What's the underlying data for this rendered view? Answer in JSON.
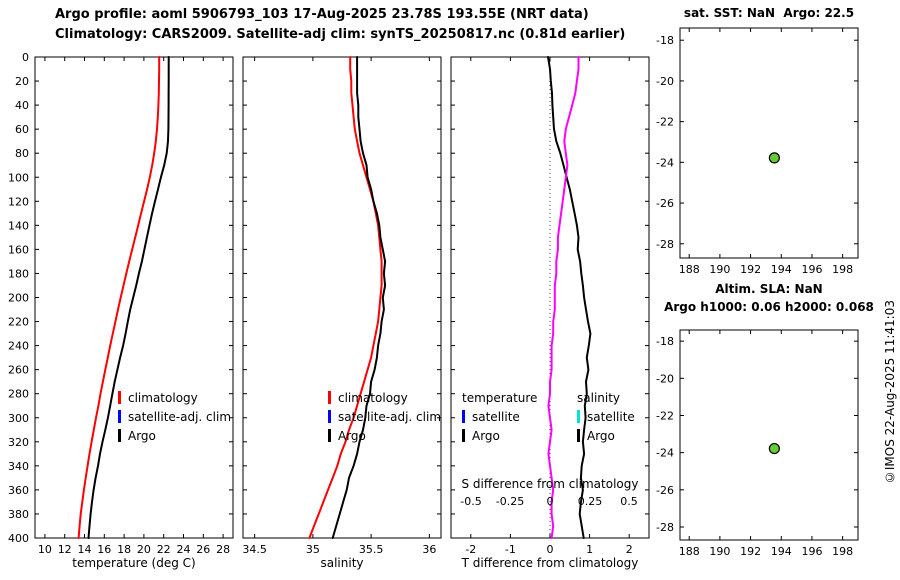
{
  "header": {
    "title_line1": "Argo profile: aoml 5906793_103 17-Aug-2025 23.78S 193.55E (NRT data)",
    "title_line2": "Climatology: CARS2009. Satellite-adj clim: synTS_20250817.nc (0.81d earlier)"
  },
  "copyright": "©IMOS 22-Aug-2025 11:41:03",
  "colors": {
    "climatology": "#ff0000",
    "satellite_adj_clim": "#0000ff",
    "argo": "#000000",
    "salinity_diff": "#ff00ff",
    "satellite_salinity": "#00e0e0",
    "position_marker_fill": "#66cc33"
  },
  "depths": [
    0,
    10,
    20,
    30,
    40,
    50,
    60,
    70,
    80,
    90,
    100,
    110,
    120,
    130,
    140,
    150,
    160,
    170,
    180,
    190,
    200,
    210,
    220,
    230,
    240,
    250,
    260,
    270,
    280,
    290,
    300,
    310,
    320,
    330,
    340,
    350,
    360,
    370,
    380,
    390,
    400
  ],
  "chart_data": [
    {
      "id": "temp",
      "type": "line",
      "xlabel": "temperature (deg C)",
      "xlim": [
        9,
        29
      ],
      "xticks": {
        "values": [
          10,
          12,
          14,
          16,
          18,
          20,
          22,
          24,
          26,
          28
        ],
        "labels": [
          "10",
          "12",
          "14",
          "16",
          "18",
          "20",
          "22",
          "24",
          "26",
          "28"
        ]
      },
      "ylim": [
        0,
        400
      ],
      "yticks": {
        "values": [
          0,
          20,
          40,
          60,
          80,
          100,
          120,
          140,
          160,
          180,
          200,
          220,
          240,
          260,
          280,
          300,
          320,
          340,
          360,
          380,
          400
        ],
        "labels": [
          "0",
          "20",
          "40",
          "60",
          "80",
          "100",
          "120",
          "140",
          "160",
          "180",
          "200",
          "220",
          "240",
          "260",
          "280",
          "300",
          "320",
          "340",
          "360",
          "380",
          "400"
        ],
        "show_labels": true
      },
      "series": [
        {
          "name": "climatology",
          "color": "#ff0000",
          "width": 2,
          "values": [
            21.55,
            21.55,
            21.53,
            21.5,
            21.46,
            21.4,
            21.32,
            21.2,
            21.04,
            20.84,
            20.6,
            20.32,
            20.02,
            19.72,
            19.42,
            19.12,
            18.82,
            18.52,
            18.22,
            17.94,
            17.66,
            17.38,
            17.12,
            16.86,
            16.6,
            16.35,
            16.1,
            15.86,
            15.62,
            15.4,
            15.16,
            14.94,
            14.72,
            14.51,
            14.31,
            14.12,
            13.94,
            13.78,
            13.62,
            13.5,
            13.4
          ]
        },
        {
          "name": "Argo",
          "color": "#000000",
          "width": 2,
          "values": [
            22.5,
            22.5,
            22.5,
            22.49,
            22.49,
            22.48,
            22.47,
            22.43,
            22.3,
            22.05,
            21.72,
            21.42,
            21.12,
            20.83,
            20.57,
            20.3,
            20.05,
            19.8,
            19.5,
            19.22,
            18.92,
            18.62,
            18.37,
            18.15,
            17.9,
            17.6,
            17.32,
            17.05,
            16.82,
            16.6,
            16.36,
            16.1,
            15.82,
            15.57,
            15.36,
            15.12,
            14.92,
            14.76,
            14.62,
            14.5,
            14.4
          ]
        }
      ],
      "legend": [
        {
          "label": "climatology",
          "color": "#ff0000"
        },
        {
          "label": "satellite-adj. clim",
          "color": "#0000ff"
        },
        {
          "label": "Argo",
          "color": "#000000"
        }
      ]
    },
    {
      "id": "sal",
      "type": "line",
      "xlabel": "salinity",
      "xlim": [
        34.4,
        36.1
      ],
      "xticks": {
        "values": [
          34.5,
          35,
          35.5,
          36
        ],
        "labels": [
          "34.5",
          "35",
          "35.5",
          "36"
        ]
      },
      "ylim": [
        0,
        400
      ],
      "yticks": {
        "values": [
          0,
          20,
          40,
          60,
          80,
          100,
          120,
          140,
          160,
          180,
          200,
          220,
          240,
          260,
          280,
          300,
          320,
          340,
          360,
          380,
          400
        ],
        "labels": [
          "0",
          "20",
          "40",
          "60",
          "80",
          "100",
          "120",
          "140",
          "160",
          "180",
          "200",
          "220",
          "240",
          "260",
          "280",
          "300",
          "320",
          "340",
          "360",
          "380",
          "400"
        ],
        "show_labels": false
      },
      "series": [
        {
          "name": "climatology",
          "color": "#ff0000",
          "width": 2,
          "values": [
            35.32,
            35.32,
            35.33,
            35.33,
            35.34,
            35.35,
            35.36,
            35.38,
            35.4,
            35.43,
            35.46,
            35.49,
            35.52,
            35.54,
            35.56,
            35.57,
            35.58,
            35.59,
            35.59,
            35.59,
            35.58,
            35.57,
            35.56,
            35.54,
            35.52,
            35.5,
            35.47,
            35.44,
            35.41,
            35.38,
            35.35,
            35.31,
            35.28,
            35.24,
            35.21,
            35.17,
            35.13,
            35.09,
            35.05,
            35.01,
            34.97
          ]
        },
        {
          "name": "Argo",
          "color": "#000000",
          "width": 2,
          "values": [
            35.38,
            35.38,
            35.38,
            35.38,
            35.39,
            35.39,
            35.4,
            35.41,
            35.43,
            35.46,
            35.47,
            35.5,
            35.52,
            35.55,
            35.57,
            35.58,
            35.6,
            35.62,
            35.61,
            35.62,
            35.6,
            35.61,
            35.59,
            35.58,
            35.56,
            35.55,
            35.53,
            35.5,
            35.49,
            35.46,
            35.45,
            35.43,
            35.4,
            35.38,
            35.35,
            35.31,
            35.29,
            35.26,
            35.23,
            35.2,
            35.17
          ]
        }
      ],
      "legend": [
        {
          "label": "climatology",
          "color": "#ff0000"
        },
        {
          "label": "satellite-adj. clim",
          "color": "#0000ff"
        },
        {
          "label": "Argo",
          "color": "#000000"
        }
      ]
    },
    {
      "id": "diff",
      "type": "line",
      "xlabel": "T difference from climatology",
      "xlim": [
        -2.5,
        2.5
      ],
      "xticks": {
        "values": [
          -2,
          -1,
          0,
          1,
          2
        ],
        "labels": [
          "-2",
          "-1",
          "0",
          "1",
          "2"
        ]
      },
      "ylim": [
        0,
        400
      ],
      "yticks": {
        "values": [
          0,
          20,
          40,
          60,
          80,
          100,
          120,
          140,
          160,
          180,
          200,
          220,
          240,
          260,
          280,
          300,
          320,
          340,
          360,
          380,
          400
        ],
        "labels": [
          "0",
          "20",
          "40",
          "60",
          "80",
          "100",
          "120",
          "140",
          "160",
          "180",
          "200",
          "220",
          "240",
          "260",
          "280",
          "300",
          "320",
          "340",
          "360",
          "380",
          "400"
        ],
        "show_labels": false
      },
      "vline": {
        "x": 0,
        "style": "dotted"
      },
      "inner_axis": {
        "label": "S difference from climatology",
        "tick_values": [
          -2,
          -1,
          0,
          1,
          2
        ],
        "tick_labels": [
          "-0.5",
          "-0.25",
          "0",
          "0.25",
          "0.5"
        ]
      },
      "series": [
        {
          "name": "T diff Argo",
          "color": "#000000",
          "width": 2,
          "values": [
            -0.05,
            0.0,
            0.02,
            0.05,
            0.06,
            0.08,
            0.1,
            0.16,
            0.26,
            0.34,
            0.42,
            0.5,
            0.56,
            0.62,
            0.68,
            0.72,
            0.7,
            0.76,
            0.79,
            0.83,
            0.86,
            0.91,
            0.96,
            1.02,
            0.98,
            0.93,
            0.97,
            0.91,
            0.93,
            0.88,
            0.9,
            0.86,
            0.83,
            0.86,
            0.8,
            0.78,
            0.83,
            0.78,
            0.75,
            0.8,
            0.85
          ]
        },
        {
          "name": "S diff Argo",
          "color": "#ff00ff",
          "width": 2,
          "scale": 4,
          "values": [
            0.18,
            0.18,
            0.17,
            0.16,
            0.14,
            0.12,
            0.1,
            0.09,
            0.1,
            0.11,
            0.1,
            0.09,
            0.08,
            0.07,
            0.06,
            0.05,
            0.05,
            0.04,
            0.04,
            0.03,
            0.03,
            0.03,
            0.02,
            0.02,
            0.01,
            0.01,
            0.01,
            0.0,
            0.0,
            -0.01,
            0.0,
            0.01,
            0.0,
            -0.01,
            0.0,
            0.01,
            0.02,
            0.01,
            0.01,
            0.02,
            0.01
          ]
        }
      ],
      "legend_groups": [
        {
          "header": "temperature",
          "items": [
            {
              "label": "satellite",
              "color": "#0000ff"
            },
            {
              "label": "Argo",
              "color": "#000000"
            }
          ]
        },
        {
          "header": "salinity",
          "items": [
            {
              "label": "satellite",
              "color": "#00e0e0"
            },
            {
              "label": "Argo",
              "color": "#000000"
            }
          ]
        }
      ]
    },
    {
      "id": "map_sst",
      "type": "scatter",
      "title": "sat. SST: NaN  Argo: 22.5",
      "xlim": [
        187.4,
        199.0
      ],
      "xticks": {
        "values": [
          188,
          190,
          192,
          194,
          196,
          198
        ],
        "labels": [
          "188",
          "190",
          "192",
          "194",
          "196",
          "198"
        ]
      },
      "ylim": [
        -17.4,
        -28.7
      ],
      "yticks": {
        "values": [
          -18,
          -20,
          -22,
          -24,
          -26,
          -28
        ],
        "labels": [
          "-18",
          "-20",
          "-22",
          "-24",
          "-26",
          "-28"
        ],
        "show_labels": true
      },
      "points": [
        {
          "x": 193.55,
          "y": -23.78,
          "fill": "#66cc33",
          "stroke": "#000000",
          "r": 5
        }
      ]
    },
    {
      "id": "map_sla",
      "type": "scatter",
      "title_line1": "Altim. SLA: NaN",
      "title_line2": "Argo h1000: 0.06 h2000: 0.068",
      "xlim": [
        187.4,
        199.0
      ],
      "xticks": {
        "values": [
          188,
          190,
          192,
          194,
          196,
          198
        ],
        "labels": [
          "188",
          "190",
          "192",
          "194",
          "196",
          "198"
        ]
      },
      "ylim": [
        -17.4,
        -28.7
      ],
      "yticks": {
        "values": [
          -18,
          -20,
          -22,
          -24,
          -26,
          -28
        ],
        "labels": [
          "-18",
          "-20",
          "-22",
          "-24",
          "-26",
          "-28"
        ],
        "show_labels": true
      },
      "points": [
        {
          "x": 193.55,
          "y": -23.78,
          "fill": "#66cc33",
          "stroke": "#000000",
          "r": 5
        }
      ]
    }
  ]
}
